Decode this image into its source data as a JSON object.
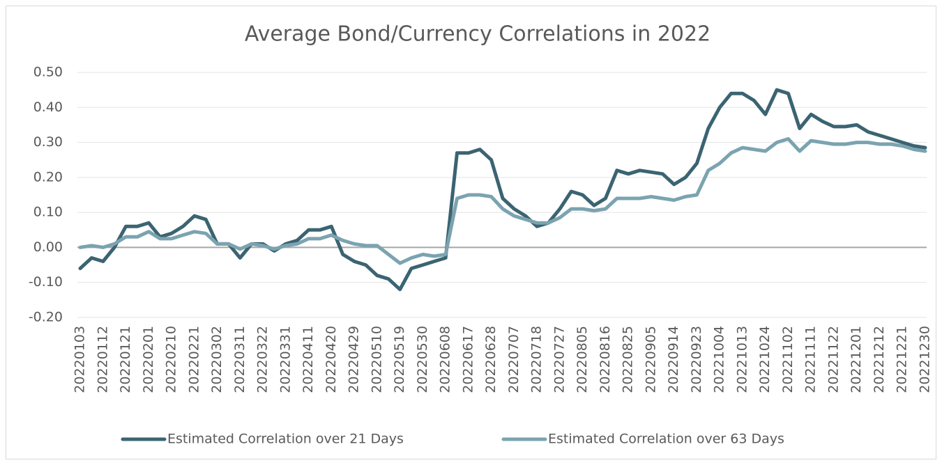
{
  "chart_data": {
    "type": "line",
    "title": "Average Bond/Currency Correlations in 2022",
    "categories": [
      "20220103",
      null,
      "20220112",
      null,
      "20220121",
      null,
      "20220201",
      null,
      "20220210",
      null,
      "20220221",
      null,
      "20220302",
      null,
      "20220311",
      null,
      "20220322",
      null,
      "20220331",
      null,
      "20220411",
      null,
      "20220420",
      null,
      "20220429",
      null,
      "20220510",
      null,
      "20220519",
      null,
      "20220530",
      null,
      "20220608",
      null,
      "20220617",
      null,
      "20220628",
      null,
      "20220707",
      null,
      "20220718",
      null,
      "20220727",
      null,
      "20220805",
      null,
      "20220816",
      null,
      "20220825",
      null,
      "20220905",
      null,
      "20220914",
      null,
      "20220923",
      null,
      "20221004",
      null,
      "20221013",
      null,
      "20221024",
      null,
      "20221102",
      null,
      "20221111",
      null,
      "20221122",
      null,
      "20221201",
      null,
      "20221212",
      null,
      "20221221",
      null,
      "20221230"
    ],
    "series": [
      {
        "name": "Estimated Correlation over 21 Days",
        "color": "#3b6472",
        "values": [
          -0.06,
          -0.03,
          -0.04,
          0.0,
          0.06,
          0.06,
          0.07,
          0.03,
          0.04,
          0.06,
          0.09,
          0.08,
          0.01,
          0.01,
          -0.03,
          0.01,
          0.01,
          -0.01,
          0.01,
          0.02,
          0.05,
          0.05,
          0.06,
          -0.02,
          -0.04,
          -0.05,
          -0.08,
          -0.09,
          -0.12,
          -0.06,
          -0.05,
          -0.04,
          -0.03,
          0.27,
          0.27,
          0.28,
          0.25,
          0.14,
          0.11,
          0.09,
          0.06,
          0.07,
          0.11,
          0.16,
          0.15,
          0.12,
          0.14,
          0.22,
          0.21,
          0.22,
          0.215,
          0.21,
          0.18,
          0.2,
          0.24,
          0.34,
          0.4,
          0.44,
          0.44,
          0.42,
          0.38,
          0.45,
          0.44,
          0.34,
          0.38,
          0.36,
          0.345,
          0.345,
          0.35,
          0.33,
          0.32,
          0.31,
          0.3,
          0.29,
          0.285
        ]
      },
      {
        "name": "Estimated Correlation over 63 Days",
        "color": "#7ba3b0",
        "values": [
          0.0,
          0.005,
          0.0,
          0.01,
          0.03,
          0.03,
          0.045,
          0.025,
          0.025,
          0.035,
          0.045,
          0.04,
          0.01,
          0.01,
          -0.005,
          0.01,
          0.005,
          -0.005,
          0.005,
          0.01,
          0.025,
          0.025,
          0.035,
          0.02,
          0.01,
          0.005,
          0.005,
          -0.02,
          -0.045,
          -0.03,
          -0.02,
          -0.025,
          -0.02,
          0.14,
          0.15,
          0.15,
          0.145,
          0.11,
          0.09,
          0.08,
          0.07,
          0.07,
          0.085,
          0.11,
          0.11,
          0.105,
          0.11,
          0.14,
          0.14,
          0.14,
          0.145,
          0.14,
          0.135,
          0.145,
          0.15,
          0.22,
          0.24,
          0.27,
          0.285,
          0.28,
          0.275,
          0.3,
          0.31,
          0.275,
          0.305,
          0.3,
          0.295,
          0.295,
          0.3,
          0.3,
          0.295,
          0.295,
          0.29,
          0.28,
          0.275
        ]
      }
    ],
    "ylim": [
      -0.2,
      0.5
    ],
    "yticks": [
      {
        "value": -0.2,
        "label": "-0.20"
      },
      {
        "value": -0.1,
        "label": "-0.10"
      },
      {
        "value": 0,
        "label": "0.00"
      },
      {
        "value": 0.1,
        "label": "0.10"
      },
      {
        "value": 0.2,
        "label": "0.20"
      },
      {
        "value": 0.3,
        "label": "0.30"
      },
      {
        "value": 0.4,
        "label": "0.40"
      },
      {
        "value": 0.5,
        "label": "0.50"
      }
    ],
    "grid": true,
    "legend": "bottom"
  }
}
